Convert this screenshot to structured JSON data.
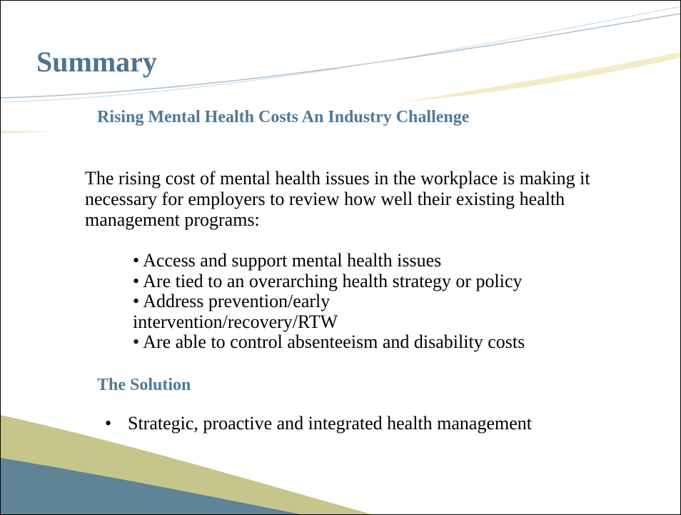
{
  "slide": {
    "title": "Summary",
    "subtitle": "Rising Mental Health Costs An Industry Challenge",
    "paragraph": "The rising cost of mental health issues in the workplace is making it necessary for employers to review how well their existing health management programs:",
    "bullets": [
      "• Access and support mental health issues",
      "• Are tied to an overarching health strategy or policy",
      "• Address prevention/early intervention/recovery/RTW",
      "• Are able to control absenteeism and disability costs"
    ],
    "solution": {
      "heading": "The Solution",
      "items": [
        {
          "marker": "•",
          "text": "Strategic, proactive and integrated health management"
        }
      ]
    }
  }
}
